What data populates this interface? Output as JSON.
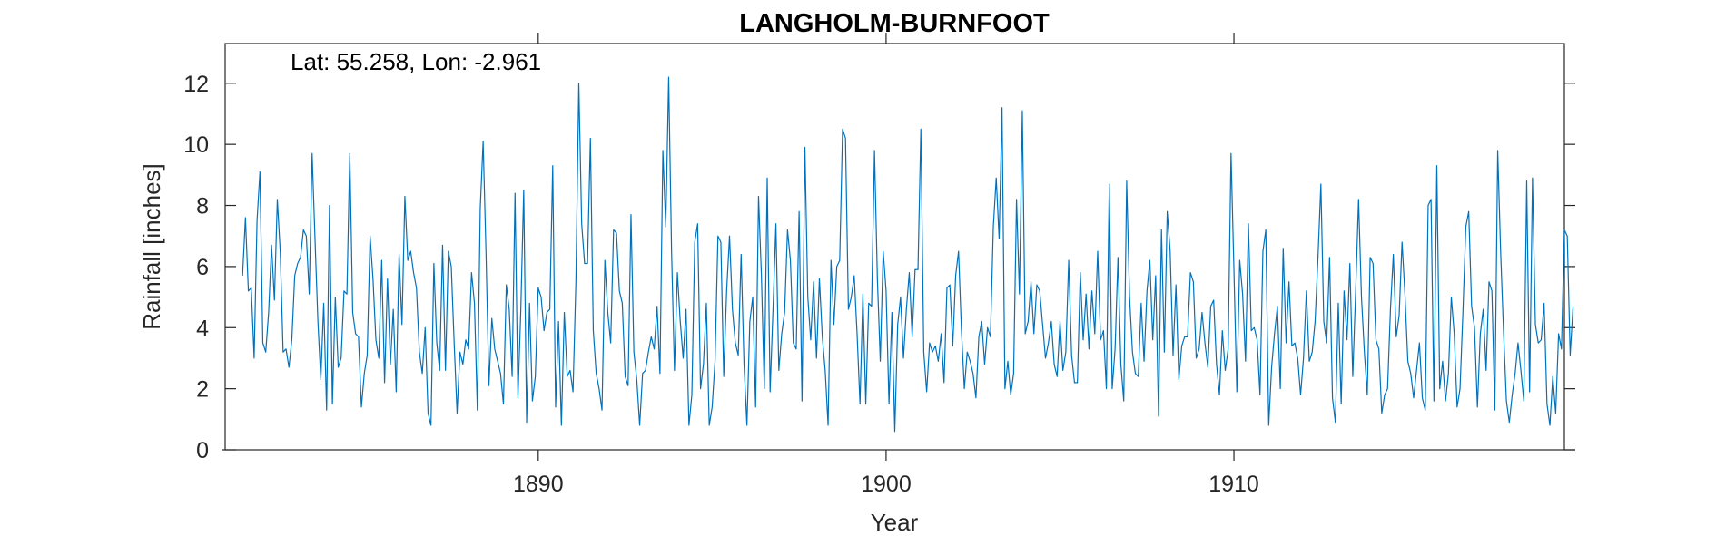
{
  "chart_data": {
    "type": "line",
    "title": "LANGHOLM-BURNFOOT",
    "xlabel": "Year",
    "ylabel": "Rainfall [inches]",
    "annotation": "Lat: 55.258, Lon: -2.961",
    "xlim": [
      1881,
      1919.5
    ],
    "ylim": [
      0,
      13.3
    ],
    "xticks": [
      1890,
      1900,
      1910
    ],
    "yticks": [
      0,
      2,
      4,
      6,
      8,
      10,
      12
    ],
    "grid": false,
    "line_color": "#0072bd",
    "series": [
      {
        "x_start": 1881.5,
        "x_step": 0.083333,
        "values": [
          5.7,
          7.6,
          5.2,
          5.3,
          3.0,
          7.5,
          9.1,
          3.5,
          3.2,
          4.5,
          6.7,
          4.9,
          8.2,
          6.5,
          3.2,
          3.3,
          2.7,
          3.6,
          5.7,
          6.1,
          6.3,
          7.2,
          7.0,
          5.1,
          9.7,
          6.9,
          4.2,
          2.3,
          4.8,
          1.3,
          8.0,
          1.5,
          5.0,
          2.7,
          3.0,
          5.2,
          5.1,
          9.7,
          4.5,
          3.8,
          3.7,
          1.4,
          2.5,
          3.1,
          7.0,
          5.6,
          3.6,
          3.0,
          6.2,
          2.2,
          5.6,
          2.8,
          4.6,
          1.9,
          6.4,
          4.1,
          8.3,
          6.2,
          6.5,
          5.8,
          5.3,
          3.2,
          2.5,
          4.0,
          1.2,
          0.8,
          6.1,
          3.5,
          2.6,
          6.7,
          2.6,
          6.5,
          6.0,
          3.5,
          1.2,
          3.2,
          2.8,
          3.6,
          3.3,
          5.8,
          4.8,
          1.3,
          7.9,
          10.1,
          6.4,
          2.1,
          4.3,
          3.3,
          2.9,
          2.5,
          1.5,
          5.4,
          4.6,
          2.4,
          8.4,
          1.7,
          4.6,
          8.5,
          0.9,
          4.8,
          1.6,
          2.4,
          5.3,
          5.0,
          3.9,
          4.5,
          4.6,
          9.3,
          1.4,
          4.2,
          0.8,
          4.5,
          2.4,
          2.6,
          1.9,
          5.5,
          12.0,
          7.4,
          6.1,
          6.1,
          10.2,
          3.9,
          2.5,
          2.0,
          1.3,
          6.2,
          4.5,
          3.5,
          7.2,
          7.1,
          5.2,
          4.8,
          2.4,
          2.1,
          7.7,
          3.2,
          2.3,
          0.8,
          2.5,
          2.6,
          3.2,
          3.7,
          3.3,
          4.7,
          2.5,
          9.8,
          7.3,
          12.2,
          6.5,
          2.6,
          5.8,
          4.2,
          3.0,
          4.6,
          0.8,
          1.8,
          6.8,
          7.4,
          2.0,
          2.8,
          4.8,
          0.8,
          1.4,
          2.9,
          7.0,
          6.8,
          2.4,
          5.2,
          7.0,
          4.6,
          3.5,
          3.1,
          6.4,
          2.8,
          0.8,
          4.2,
          5.0,
          1.4,
          8.3,
          5.7,
          2.0,
          8.9,
          1.9,
          4.6,
          7.4,
          2.6,
          3.8,
          4.5,
          7.2,
          6.2,
          3.5,
          3.3,
          7.8,
          1.6,
          9.9,
          5.0,
          3.6,
          5.5,
          3.0,
          5.6,
          3.7,
          2.6,
          0.8,
          6.2,
          4.1,
          6.0,
          6.2,
          10.5,
          10.2,
          4.6,
          5.0,
          5.7,
          3.8,
          1.5,
          5.1,
          1.5,
          4.8,
          4.7,
          9.8,
          5.6,
          2.9,
          6.5,
          5.2,
          1.5,
          4.5,
          0.6,
          4.1,
          5.0,
          3.0,
          4.6,
          5.8,
          3.7,
          5.9,
          5.9,
          10.5,
          3.2,
          1.9,
          3.5,
          3.2,
          3.4,
          2.9,
          3.8,
          2.2,
          5.3,
          5.4,
          3.4,
          5.7,
          6.5,
          3.9,
          2.0,
          3.2,
          2.9,
          2.5,
          1.7,
          3.7,
          4.2,
          2.8,
          4.0,
          3.7,
          7.3,
          8.9,
          6.9,
          11.2,
          2.0,
          2.9,
          1.8,
          2.5,
          8.2,
          5.1,
          11.1,
          3.8,
          4.2,
          5.5,
          3.8,
          5.4,
          5.2,
          4.1,
          3.0,
          3.5,
          4.2,
          2.8,
          2.4,
          4.2,
          2.6,
          3.2,
          6.2,
          3.1,
          2.2,
          2.2,
          5.8,
          3.6,
          5.1,
          3.3,
          5.2,
          3.8,
          6.5,
          3.6,
          3.9,
          2.0,
          8.7,
          2.0,
          3.3,
          6.3,
          2.8,
          1.6,
          8.8,
          5.0,
          3.2,
          2.5,
          2.4,
          4.8,
          2.9,
          5.2,
          6.2,
          3.6,
          5.7,
          1.1,
          7.2,
          3.2,
          7.8,
          6.5,
          3.1,
          5.4,
          2.3,
          3.4,
          3.7,
          3.7,
          5.8,
          5.5,
          3.0,
          3.3,
          4.5,
          3.5,
          2.7,
          4.7,
          4.9,
          2.8,
          1.8,
          3.9,
          2.6,
          3.3,
          9.7,
          5.9,
          1.9,
          6.2,
          5.1,
          2.9,
          7.4,
          3.9,
          4.0,
          3.6,
          1.8,
          6.5,
          7.2,
          0.8,
          2.7,
          3.8,
          4.7,
          2.0,
          6.6,
          3.5,
          5.5,
          3.4,
          3.5,
          3.0,
          1.8,
          3.0,
          5.2,
          2.9,
          3.2,
          4.2,
          6.3,
          8.7,
          4.2,
          3.5,
          6.3,
          1.7,
          0.9,
          4.8,
          1.5,
          5.2,
          3.6,
          6.1,
          2.4,
          5.2,
          8.2,
          5.0,
          3.2,
          1.8,
          6.3,
          6.1,
          3.6,
          3.3,
          1.2,
          1.8,
          2.0,
          4.6,
          6.4,
          3.7,
          4.4,
          6.8,
          5.1,
          2.9,
          2.5,
          1.7,
          2.6,
          3.5,
          1.7,
          1.3,
          8.0,
          8.2,
          1.6,
          9.3,
          2.0,
          2.9,
          1.6,
          2.5,
          5.0,
          3.8,
          1.4,
          2.0,
          4.5,
          7.3,
          7.8,
          4.7,
          4.0,
          1.4,
          3.8,
          4.6,
          2.6,
          5.5,
          5.2,
          1.3,
          9.8,
          6.5,
          3.9,
          1.6,
          0.9,
          1.8,
          2.5,
          3.5,
          2.6,
          1.6,
          8.8,
          1.9,
          8.9,
          4.1,
          3.5,
          3.6,
          4.8,
          1.5,
          0.8,
          2.4,
          1.2,
          3.8,
          3.3,
          7.2,
          7.0,
          3.1,
          4.7
        ]
      }
    ]
  }
}
